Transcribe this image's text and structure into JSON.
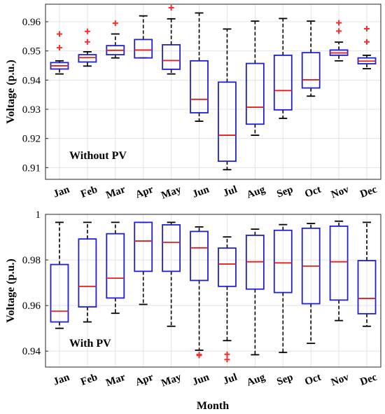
{
  "colors": {
    "box": "#1f1fd6",
    "median": "#e02020",
    "outlier": "#ff2a2a",
    "whisker": "#000000",
    "grid": "#e3e3e3"
  },
  "chart_data": [
    {
      "type": "box",
      "annotation": "Without PV",
      "ylabel": "Voltage (p.u.)",
      "xlabel": "",
      "ylim": [
        0.906,
        0.966
      ],
      "yticks": [
        0.91,
        0.92,
        0.93,
        0.94,
        0.95,
        0.96
      ],
      "ytick_labels": [
        "0.91",
        "0.92",
        "0.93",
        "0.94",
        "0.95",
        "0.96"
      ],
      "grid": true,
      "categories": [
        "Jan",
        "Feb",
        "Mar",
        "Apr",
        "May",
        "Jun",
        "Jul",
        "Aug",
        "Sep",
        "Oct",
        "Nov",
        "Dec"
      ],
      "boxes": [
        {
          "whisker_low": 0.9421,
          "q1": 0.9438,
          "median": 0.9449,
          "q3": 0.946,
          "whisker_high": 0.9466,
          "outliers": [
            0.9511,
            0.9558
          ]
        },
        {
          "whisker_low": 0.9448,
          "q1": 0.9462,
          "median": 0.9477,
          "q3": 0.9487,
          "whisker_high": 0.9497,
          "outliers": [
            0.9531,
            0.9567
          ]
        },
        {
          "whisker_low": 0.9476,
          "q1": 0.9487,
          "median": 0.9502,
          "q3": 0.9518,
          "whisker_high": 0.9558,
          "outliers": [
            0.9595
          ]
        },
        {
          "whisker_low": 0.9476,
          "q1": 0.9476,
          "median": 0.9503,
          "q3": 0.9539,
          "whisker_high": 0.962,
          "outliers": []
        },
        {
          "whisker_low": 0.9421,
          "q1": 0.9437,
          "median": 0.9467,
          "q3": 0.9521,
          "whisker_high": 0.961,
          "outliers": [
            0.9648
          ]
        },
        {
          "whisker_low": 0.9259,
          "q1": 0.9288,
          "median": 0.9334,
          "q3": 0.9466,
          "whisker_high": 0.963,
          "outliers": []
        },
        {
          "whisker_low": 0.9093,
          "q1": 0.9122,
          "median": 0.9211,
          "q3": 0.9393,
          "whisker_high": 0.9575,
          "outliers": []
        },
        {
          "whisker_low": 0.9211,
          "q1": 0.9249,
          "median": 0.9307,
          "q3": 0.9457,
          "whisker_high": 0.9602,
          "outliers": []
        },
        {
          "whisker_low": 0.9269,
          "q1": 0.9298,
          "median": 0.9364,
          "q3": 0.9485,
          "whisker_high": 0.9611,
          "outliers": []
        },
        {
          "whisker_low": 0.9345,
          "q1": 0.9373,
          "median": 0.9401,
          "q3": 0.9494,
          "whisker_high": 0.9602,
          "outliers": []
        },
        {
          "whisker_low": 0.9466,
          "q1": 0.9485,
          "median": 0.9493,
          "q3": 0.9503,
          "whisker_high": 0.953,
          "outliers": [
            0.9568,
            0.9596
          ]
        },
        {
          "whisker_low": 0.9439,
          "q1": 0.9456,
          "median": 0.9465,
          "q3": 0.9476,
          "whisker_high": 0.9485,
          "outliers": [
            0.9531,
            0.9576
          ]
        }
      ]
    },
    {
      "type": "box",
      "annotation": "With PV",
      "ylabel": "Voltage (p.u.)",
      "xlabel": "Month",
      "ylim": [
        0.933,
        1.0
      ],
      "yticks": [
        0.94,
        0.96,
        0.98,
        1.0
      ],
      "ytick_labels": [
        "0.94",
        "0.96",
        "0.98",
        "1"
      ],
      "grid": true,
      "categories": [
        "Jan",
        "Feb",
        "Mar",
        "Apr",
        "May",
        "Jun",
        "Jul",
        "Aug",
        "Sep",
        "Oct",
        "Nov",
        "Dec"
      ],
      "boxes": [
        {
          "whisker_low": 0.95,
          "q1": 0.9528,
          "median": 0.9575,
          "q3": 0.978,
          "whisker_high": 0.9965,
          "outliers": []
        },
        {
          "whisker_low": 0.9528,
          "q1": 0.9594,
          "median": 0.9684,
          "q3": 0.9892,
          "whisker_high": 0.9965,
          "outliers": []
        },
        {
          "whisker_low": 0.9566,
          "q1": 0.9633,
          "median": 0.972,
          "q3": 0.9915,
          "whisker_high": 0.9965,
          "outliers": []
        },
        {
          "whisker_low": 0.9605,
          "q1": 0.975,
          "median": 0.9883,
          "q3": 0.9965,
          "whisker_high": 0.9965,
          "outliers": []
        },
        {
          "whisker_low": 0.9509,
          "q1": 0.975,
          "median": 0.9877,
          "q3": 0.9954,
          "whisker_high": 0.9965,
          "outliers": []
        },
        {
          "whisker_low": 0.9404,
          "q1": 0.971,
          "median": 0.9853,
          "q3": 0.9925,
          "whisker_high": 0.9945,
          "outliers": [
            0.9385,
            0.9381
          ]
        },
        {
          "whisker_low": 0.9446,
          "q1": 0.9684,
          "median": 0.9782,
          "q3": 0.9852,
          "whisker_high": 0.9901,
          "outliers": [
            0.9386,
            0.9363
          ]
        },
        {
          "whisker_low": 0.9384,
          "q1": 0.9672,
          "median": 0.9792,
          "q3": 0.9908,
          "whisker_high": 0.9935,
          "outliers": []
        },
        {
          "whisker_low": 0.9394,
          "q1": 0.9657,
          "median": 0.9787,
          "q3": 0.993,
          "whisker_high": 0.9955,
          "outliers": []
        },
        {
          "whisker_low": 0.9434,
          "q1": 0.9608,
          "median": 0.9773,
          "q3": 0.9939,
          "whisker_high": 0.996,
          "outliers": []
        },
        {
          "whisker_low": 0.9534,
          "q1": 0.9624,
          "median": 0.9792,
          "q3": 0.9948,
          "whisker_high": 0.997,
          "outliers": []
        },
        {
          "whisker_low": 0.9509,
          "q1": 0.9564,
          "median": 0.9631,
          "q3": 0.9797,
          "whisker_high": 0.9965,
          "outliers": []
        }
      ]
    }
  ]
}
